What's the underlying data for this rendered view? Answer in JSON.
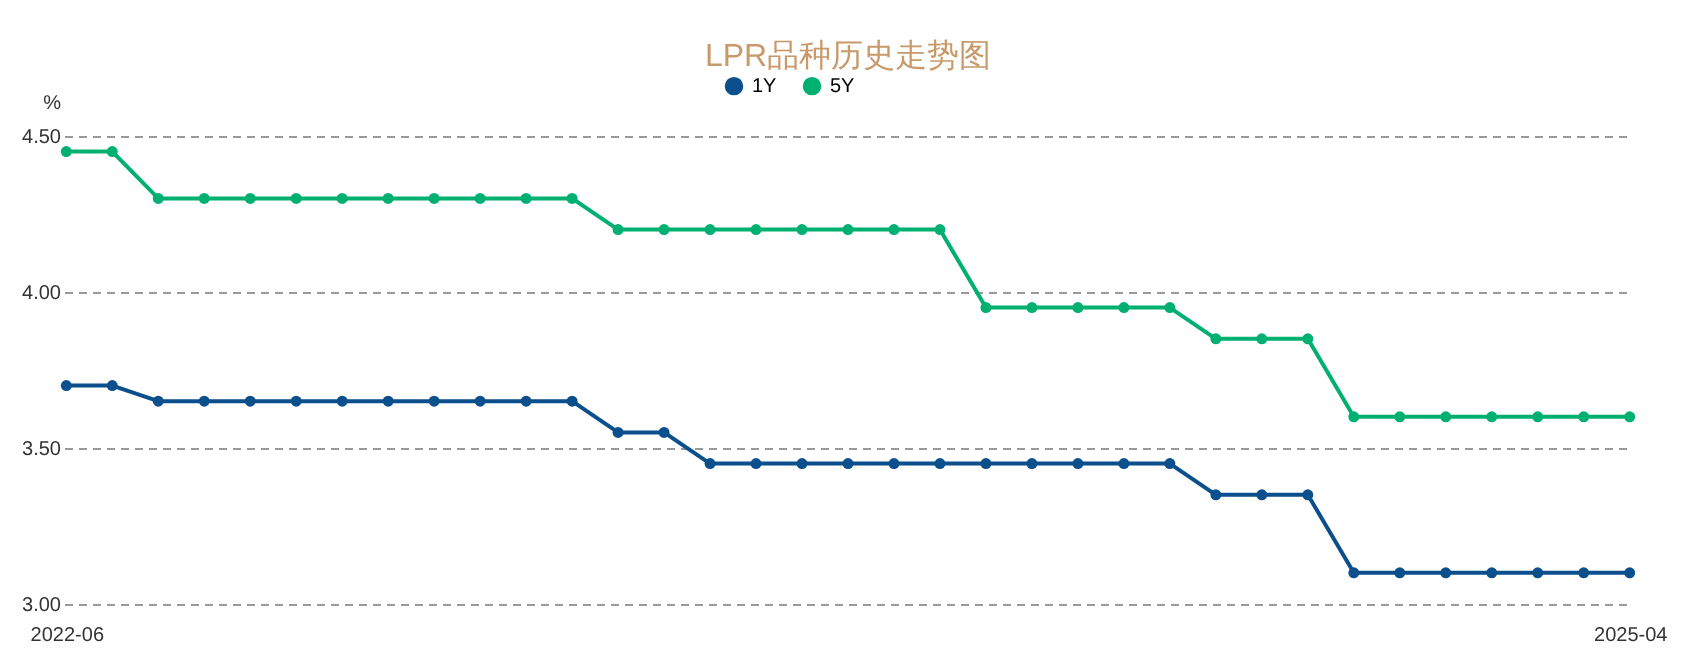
{
  "chart_data": {
    "type": "line",
    "title": "LPR品种历史走势图",
    "ylabel": "%",
    "categories": [
      "2022-06",
      null,
      null,
      null,
      null,
      null,
      null,
      null,
      null,
      null,
      null,
      null,
      null,
      null,
      null,
      null,
      null,
      null,
      null,
      null,
      null,
      null,
      null,
      null,
      null,
      null,
      null,
      null,
      null,
      null,
      null,
      null,
      null,
      null,
      "2025-04"
    ],
    "series": [
      {
        "name": "1Y",
        "color": "#0b4f8c",
        "values": [
          3.7,
          3.7,
          3.65,
          3.65,
          3.65,
          3.65,
          3.65,
          3.65,
          3.65,
          3.65,
          3.65,
          3.65,
          3.55,
          3.55,
          3.45,
          3.45,
          3.45,
          3.45,
          3.45,
          3.45,
          3.45,
          3.45,
          3.45,
          3.45,
          3.45,
          3.35,
          3.35,
          3.35,
          3.1,
          3.1,
          3.1,
          3.1,
          3.1,
          3.1,
          3.1
        ]
      },
      {
        "name": "5Y",
        "color": "#00b070",
        "values": [
          4.45,
          4.45,
          4.3,
          4.3,
          4.3,
          4.3,
          4.3,
          4.3,
          4.3,
          4.3,
          4.3,
          4.3,
          4.2,
          4.2,
          4.2,
          4.2,
          4.2,
          4.2,
          4.2,
          4.2,
          3.95,
          3.95,
          3.95,
          3.95,
          3.95,
          3.85,
          3.85,
          3.85,
          3.6,
          3.6,
          3.6,
          3.6,
          3.6,
          3.6,
          3.6
        ]
      }
    ],
    "ylim": [
      3.0,
      4.5
    ],
    "yticks": [
      {
        "value": 3.0,
        "label": "3.00"
      },
      {
        "value": 3.5,
        "label": "3.50"
      },
      {
        "value": 4.0,
        "label": "4.00"
      },
      {
        "value": 4.5,
        "label": "4.50"
      }
    ],
    "grid": "y",
    "legend": "top",
    "marker": "circle",
    "line_style": "solid"
  }
}
